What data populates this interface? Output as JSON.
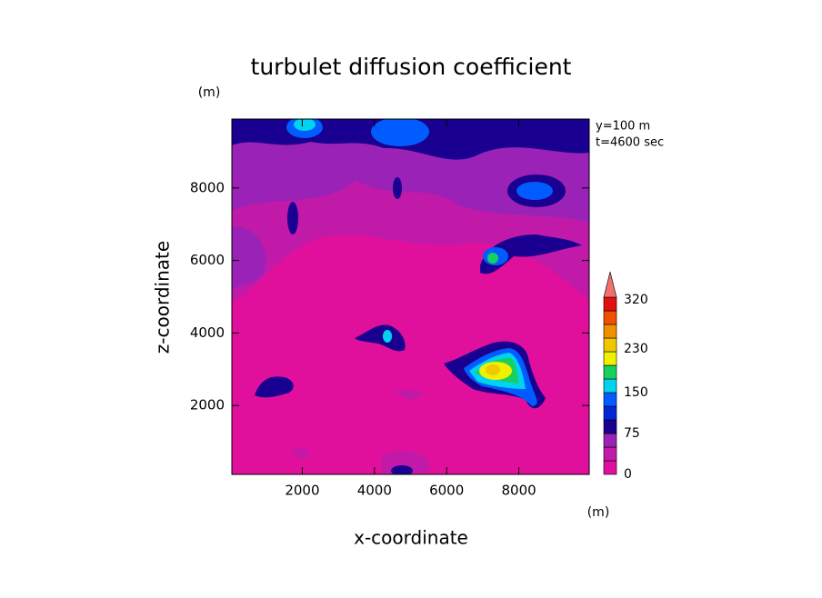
{
  "chart_data": {
    "type": "contour",
    "title": "turbulet diffusion coefficient",
    "xlabel": "x-coordinate",
    "ylabel": "z-coordinate",
    "x_unit": "(m)",
    "y_unit": "(m)",
    "annotations": [
      "y=100 m",
      "t=4600 sec"
    ],
    "xlim": [
      50,
      9950
    ],
    "xticks": [
      2000,
      4000,
      6000,
      8000
    ],
    "ylim": [
      100,
      9900
    ],
    "yticks": [
      2000,
      4000,
      6000,
      8000
    ],
    "levels": [
      0,
      25,
      50,
      75,
      100,
      125,
      150,
      175,
      200,
      225,
      250,
      275,
      300,
      325
    ],
    "colors": [
      "#e0109c",
      "#c21aa8",
      "#9a22b6",
      "#1a0090",
      "#0026d8",
      "#005cff",
      "#00d2f0",
      "#18d060",
      "#f0f000",
      "#f0c800",
      "#f09000",
      "#f05000",
      "#e01010"
    ],
    "extend_color": "#f07070",
    "cticks": [
      0,
      75,
      150,
      230,
      320
    ]
  }
}
